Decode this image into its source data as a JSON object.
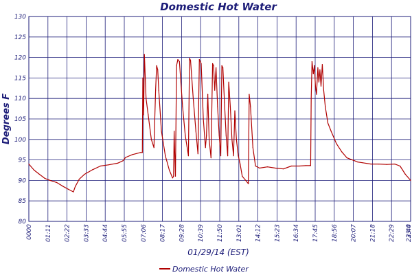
{
  "chart_data": {
    "type": "line",
    "title": "Domestic Hot Water",
    "xlabel": "01/29/14 (EST)",
    "ylabel": "Degrees F",
    "ylim": [
      80,
      130
    ],
    "yticks": [
      80,
      85,
      90,
      95,
      100,
      105,
      110,
      115,
      120,
      125,
      130
    ],
    "xlim": [
      "00:00",
      "24:00"
    ],
    "xticks": [
      "0000",
      "01:11",
      "02:22",
      "03:33",
      "04:44",
      "05:55",
      "07:06",
      "08:17",
      "09:28",
      "10:39",
      "11:50",
      "13:01",
      "14:12",
      "15:23",
      "16:34",
      "17:45",
      "18:56",
      "20:07",
      "21:18",
      "22:29",
      "23:40",
      "23:4"
    ],
    "grid": true,
    "legend_position": "bottom-center",
    "series": [
      {
        "name": "Domestic Hot Water",
        "color": "#b00000",
        "points": [
          [
            "00:00",
            94.0
          ],
          [
            "00:20",
            92.5
          ],
          [
            "00:40",
            91.5
          ],
          [
            "01:00",
            90.5
          ],
          [
            "01:20",
            90.0
          ],
          [
            "01:45",
            89.5
          ],
          [
            "02:10",
            88.5
          ],
          [
            "02:30",
            87.8
          ],
          [
            "02:48",
            87.2
          ],
          [
            "02:55",
            88.5
          ],
          [
            "03:10",
            90.3
          ],
          [
            "03:30",
            91.5
          ],
          [
            "04:00",
            92.6
          ],
          [
            "04:30",
            93.5
          ],
          [
            "05:00",
            93.8
          ],
          [
            "05:35",
            94.2
          ],
          [
            "05:55",
            94.8
          ],
          [
            "06:05",
            95.6
          ],
          [
            "06:30",
            96.3
          ],
          [
            "07:00",
            96.8
          ],
          [
            "07:08",
            96.8
          ],
          [
            "07:10",
            115.0
          ],
          [
            "07:13",
            106.0
          ],
          [
            "07:16",
            120.7
          ],
          [
            "07:22",
            110.0
          ],
          [
            "07:30",
            106.0
          ],
          [
            "07:42",
            100.0
          ],
          [
            "07:52",
            98.0
          ],
          [
            "07:58",
            112.0
          ],
          [
            "08:02",
            118.0
          ],
          [
            "08:06",
            117.0
          ],
          [
            "08:10",
            112.0
          ],
          [
            "08:20",
            102.0
          ],
          [
            "08:35",
            96.0
          ],
          [
            "08:50",
            92.5
          ],
          [
            "09:02",
            90.6
          ],
          [
            "09:06",
            91.0
          ],
          [
            "09:08",
            102.0
          ],
          [
            "09:10",
            97.0
          ],
          [
            "09:13",
            91.0
          ],
          [
            "09:17",
            118.0
          ],
          [
            "09:22",
            119.5
          ],
          [
            "09:28",
            119.0
          ],
          [
            "09:40",
            108.0
          ],
          [
            "09:50",
            101.0
          ],
          [
            "10:02",
            96.0
          ],
          [
            "10:06",
            119.8
          ],
          [
            "10:10",
            119.3
          ],
          [
            "10:20",
            110.0
          ],
          [
            "10:30",
            102.0
          ],
          [
            "10:38",
            96.5
          ],
          [
            "10:43",
            119.5
          ],
          [
            "10:50",
            118.5
          ],
          [
            "10:58",
            105.0
          ],
          [
            "11:06",
            98.0
          ],
          [
            "11:10",
            101.0
          ],
          [
            "11:15",
            111.0
          ],
          [
            "11:20",
            100.0
          ],
          [
            "11:27",
            95.5
          ],
          [
            "11:33",
            118.5
          ],
          [
            "11:37",
            118.0
          ],
          [
            "11:41",
            112.0
          ],
          [
            "11:46",
            117.5
          ],
          [
            "11:52",
            108.0
          ],
          [
            "11:58",
            101.0
          ],
          [
            "12:04",
            96.0
          ],
          [
            "12:08",
            118.0
          ],
          [
            "12:12",
            117.5
          ],
          [
            "12:18",
            109.0
          ],
          [
            "12:24",
            101.0
          ],
          [
            "12:30",
            96.0
          ],
          [
            "12:34",
            114.0
          ],
          [
            "12:40",
            108.0
          ],
          [
            "12:46",
            100.0
          ],
          [
            "12:52",
            96.0
          ],
          [
            "12:57",
            107.0
          ],
          [
            "13:03",
            100.0
          ],
          [
            "13:10",
            96.0
          ],
          [
            "13:17",
            94.0
          ],
          [
            "13:25",
            91.0
          ],
          [
            "13:38",
            90.0
          ],
          [
            "13:48",
            89.2
          ],
          [
            "13:51",
            111.0
          ],
          [
            "13:56",
            108.0
          ],
          [
            "14:05",
            98.0
          ],
          [
            "14:15",
            93.5
          ],
          [
            "14:30",
            93.0
          ],
          [
            "15:00",
            93.3
          ],
          [
            "15:30",
            93.0
          ],
          [
            "16:00",
            92.8
          ],
          [
            "16:30",
            93.5
          ],
          [
            "17:00",
            93.5
          ],
          [
            "17:25",
            93.6
          ],
          [
            "17:40",
            93.6
          ],
          [
            "17:43",
            93.6
          ],
          [
            "17:45",
            110.0
          ],
          [
            "17:48",
            119.0
          ],
          [
            "17:53",
            116.0
          ],
          [
            "17:57",
            118.0
          ],
          [
            "18:01",
            113.0
          ],
          [
            "18:05",
            111.0
          ],
          [
            "18:10",
            117.5
          ],
          [
            "18:14",
            114.0
          ],
          [
            "18:18",
            117.0
          ],
          [
            "18:22",
            113.0
          ],
          [
            "18:27",
            118.3
          ],
          [
            "18:32",
            112.0
          ],
          [
            "18:38",
            108.0
          ],
          [
            "18:48",
            104.0
          ],
          [
            "19:00",
            102.0
          ],
          [
            "19:20",
            99.0
          ],
          [
            "19:40",
            97.0
          ],
          [
            "20:00",
            95.5
          ],
          [
            "20:20",
            95.0
          ],
          [
            "20:40",
            94.5
          ],
          [
            "21:00",
            94.3
          ],
          [
            "21:30",
            94.0
          ],
          [
            "22:00",
            94.0
          ],
          [
            "22:30",
            93.9
          ],
          [
            "23:00",
            94.0
          ],
          [
            "23:20",
            93.5
          ],
          [
            "23:40",
            91.5
          ],
          [
            "24:00",
            90.0
          ]
        ]
      }
    ]
  }
}
